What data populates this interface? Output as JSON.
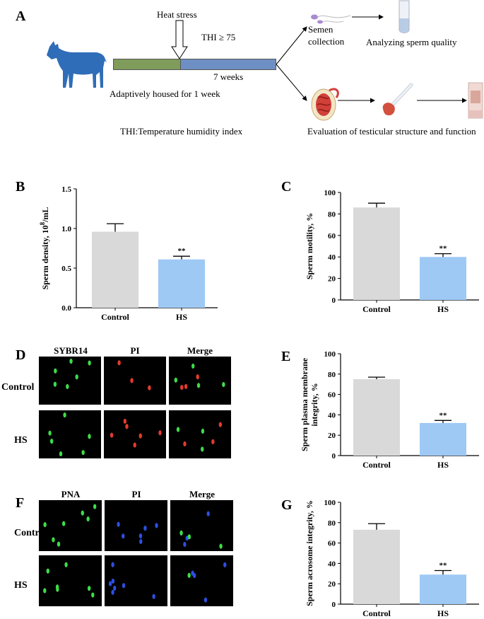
{
  "panelA": {
    "letter": "A",
    "heat_stress": "Heat stress",
    "thi_threshold": "THI ≥ 75",
    "duration": "7 weeks",
    "acclimation": "Adaptively housed for 1 week",
    "thi_def": "THI:Temperature humidity index",
    "semen_line1": "Semen",
    "semen_line2": "collection",
    "analyze": "Analyzing sperm quality",
    "evaluation": "Evaluation of testicular structure and function",
    "colors": {
      "acclimation_bar": "#7f9c5a",
      "stress_bar": "#6d8fc4",
      "goat": "#2f6db8"
    }
  },
  "panelD": {
    "letter": "D",
    "columns": [
      "SYBR14",
      "PI",
      "Merge"
    ],
    "rows": [
      "Control",
      "HS"
    ]
  },
  "panelF": {
    "letter": "F",
    "columns": [
      "PNA",
      "PI",
      "Merge"
    ],
    "rows": [
      "Control",
      "HS"
    ]
  },
  "chart_data": [
    {
      "id": "B",
      "letter": "B",
      "type": "bar",
      "categories": [
        "Control",
        "HS"
      ],
      "values": [
        0.96,
        0.61
      ],
      "errors": [
        0.1,
        0.04
      ],
      "significance": [
        "",
        "**"
      ],
      "ylabel": "Sperm density, 10^8/mL",
      "ylim": [
        0,
        1.5
      ],
      "yticks": [
        0.0,
        0.5,
        1.0,
        1.5
      ],
      "ytick_labels": [
        "0.0",
        "0.5",
        "1.0",
        "1.5"
      ],
      "colors": [
        "#d9d9d9",
        "#9ec9f5"
      ]
    },
    {
      "id": "C",
      "letter": "C",
      "type": "bar",
      "categories": [
        "Control",
        "HS"
      ],
      "values": [
        86,
        40
      ],
      "errors": [
        4,
        3
      ],
      "significance": [
        "",
        "**"
      ],
      "ylabel": "Sperm motility, %",
      "ylim": [
        0,
        100
      ],
      "yticks": [
        0,
        20,
        40,
        60,
        80,
        100
      ],
      "ytick_labels": [
        "0",
        "20",
        "40",
        "60",
        "80",
        "100"
      ],
      "colors": [
        "#d9d9d9",
        "#9ec9f5"
      ]
    },
    {
      "id": "E",
      "letter": "E",
      "type": "bar",
      "categories": [
        "Control",
        "HS"
      ],
      "values": [
        75,
        32
      ],
      "errors": [
        2,
        2.5
      ],
      "significance": [
        "",
        "**"
      ],
      "ylabel": "Sperm plasma membrane integrity, %",
      "ylim": [
        0,
        100
      ],
      "yticks": [
        0,
        20,
        40,
        60,
        80,
        100
      ],
      "ytick_labels": [
        "0",
        "20",
        "40",
        "60",
        "80",
        "100"
      ],
      "colors": [
        "#d9d9d9",
        "#9ec9f5"
      ]
    },
    {
      "id": "G",
      "letter": "G",
      "type": "bar",
      "categories": [
        "Control",
        "HS"
      ],
      "values": [
        73,
        29
      ],
      "errors": [
        6,
        4
      ],
      "significance": [
        "",
        "**"
      ],
      "ylabel": "Sperm acrosome integrity, %",
      "ylim": [
        0,
        100
      ],
      "yticks": [
        0,
        20,
        40,
        60,
        80,
        100
      ],
      "ytick_labels": [
        "0",
        "20",
        "40",
        "60",
        "80",
        "100"
      ],
      "colors": [
        "#d9d9d9",
        "#9ec9f5"
      ]
    }
  ]
}
